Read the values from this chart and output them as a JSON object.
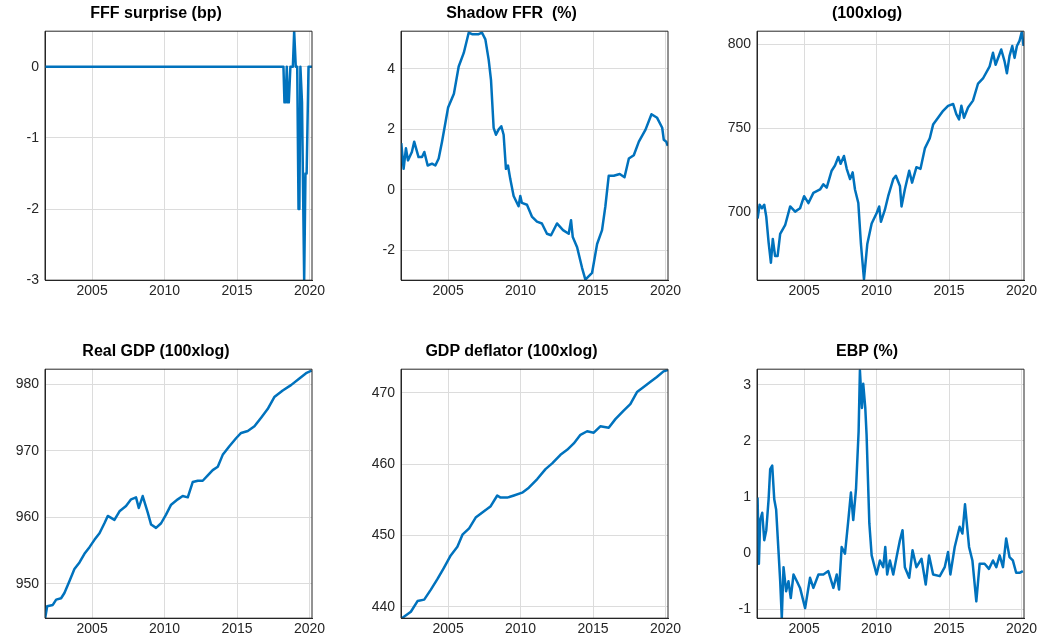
{
  "chart_data": [
    {
      "type": "line",
      "title": "FFF surprise (bp)",
      "xlim": [
        2001.75,
        2020.17
      ],
      "xticks": [
        2005,
        2010,
        2015,
        2020
      ],
      "ylim": [
        -3,
        0.5
      ],
      "yticks": [
        -3,
        -2,
        -1,
        0
      ],
      "grid": true,
      "marker": "none",
      "line_style": "solid",
      "series": [
        {
          "color": "#0072bd",
          "x": [
            2001.75,
            2018.2,
            2018.27,
            2018.35,
            2018.43,
            2018.5,
            2018.57,
            2018.68,
            2018.75,
            2018.85,
            2018.94,
            2019.05,
            2019.15,
            2019.24,
            2019.3,
            2019.37,
            2019.48,
            2019.63,
            2019.72,
            2019.8,
            2019.93,
            2020.17
          ],
          "values": [
            0,
            0,
            -0.5,
            -0.5,
            0,
            -0.5,
            -0.5,
            0,
            0,
            0,
            0.5,
            0,
            0,
            -2,
            -2,
            0,
            -0.5,
            -3,
            -1.5,
            -1.5,
            0,
            0
          ]
        }
      ]
    },
    {
      "type": "line",
      "title": "Shadow FFR  (%)",
      "xlim": [
        2001.75,
        2020.17
      ],
      "xticks": [
        2005,
        2010,
        2015,
        2020
      ],
      "ylim": [
        -3,
        5.25
      ],
      "yticks": [
        -2,
        0,
        2,
        4
      ],
      "grid": true,
      "marker": "none",
      "line_style": "solid",
      "series": [
        {
          "color": "#0072bd",
          "x": [
            2001.77,
            2001.93,
            2002.09,
            2002.23,
            2002.5,
            2002.66,
            2002.96,
            2003.2,
            2003.36,
            2003.59,
            2003.89,
            2004.12,
            2004.35,
            2004.58,
            2005.0,
            2005.4,
            2005.73,
            2006.08,
            2006.42,
            2006.65,
            2007.11,
            2007.34,
            2007.57,
            2007.8,
            2007.96,
            2008.14,
            2008.3,
            2008.48,
            2008.67,
            2008.83,
            2008.99,
            2009.13,
            2009.29,
            2009.52,
            2009.86,
            2009.98,
            2010.09,
            2010.44,
            2010.78,
            2011.13,
            2011.47,
            2011.82,
            2012.1,
            2012.51,
            2012.93,
            2013.32,
            2013.48,
            2013.6,
            2013.9,
            2014.24,
            2014.47,
            2014.93,
            2015.28,
            2015.62,
            2015.85,
            2016.08,
            2016.43,
            2016.84,
            2017.17,
            2017.47,
            2017.81,
            2018.16,
            2018.62,
            2019.03,
            2019.42,
            2019.77,
            2019.88,
            2020.05,
            2020.15
          ],
          "values": [
            1.54,
            0.69,
            1.37,
            0.97,
            1.25,
            1.59,
            1.08,
            1.08,
            1.25,
            0.8,
            0.86,
            0.8,
            1.03,
            1.59,
            2.72,
            3.18,
            4.08,
            4.53,
            5.2,
            5.15,
            5.15,
            5.2,
            4.98,
            4.3,
            3.63,
            2.05,
            1.82,
            1.99,
            2.1,
            1.82,
            0.69,
            0.8,
            0.35,
            -0.21,
            -0.55,
            -0.21,
            -0.44,
            -0.5,
            -0.89,
            -1.06,
            -1.12,
            -1.46,
            -1.51,
            -1.12,
            -1.34,
            -1.46,
            -1.01,
            -1.57,
            -1.91,
            -2.59,
            -2.98,
            -2.76,
            -1.8,
            -1.34,
            -0.55,
            0.46,
            0.46,
            0.52,
            0.41,
            1.03,
            1.14,
            1.59,
            1.99,
            2.5,
            2.38,
            2.05,
            1.65,
            1.59,
            1.45
          ]
        }
      ]
    },
    {
      "type": "line",
      "title": "(100xlog)",
      "xlim": [
        2001.75,
        2020.17
      ],
      "xticks": [
        2005,
        2010,
        2015,
        2020
      ],
      "ylim": [
        659.5,
        808
      ],
      "yticks": [
        700,
        750,
        800
      ],
      "grid": true,
      "marker": "none",
      "line_style": "solid",
      "series": [
        {
          "color": "#0072bd",
          "x": [
            2001.79,
            2001.93,
            2002.09,
            2002.25,
            2002.39,
            2002.55,
            2002.71,
            2002.84,
            2003.0,
            2003.17,
            2003.35,
            2003.69,
            2004.04,
            2004.38,
            2004.72,
            2005.0,
            2005.3,
            2005.64,
            2006.1,
            2006.33,
            2006.56,
            2006.9,
            2007.13,
            2007.36,
            2007.52,
            2007.75,
            2007.94,
            2008.17,
            2008.35,
            2008.51,
            2008.74,
            2008.92,
            2009.13,
            2009.36,
            2009.66,
            2010.0,
            2010.18,
            2010.3,
            2010.57,
            2010.8,
            2011.15,
            2011.33,
            2011.61,
            2011.72,
            2011.95,
            2012.25,
            2012.45,
            2012.75,
            2013.03,
            2013.33,
            2013.67,
            2013.9,
            2014.24,
            2014.59,
            2014.93,
            2015.28,
            2015.5,
            2015.69,
            2015.85,
            2016.03,
            2016.31,
            2016.65,
            2017.0,
            2017.34,
            2017.8,
            2018.03,
            2018.21,
            2018.6,
            2018.83,
            2018.99,
            2019.17,
            2019.36,
            2019.52,
            2019.68,
            2019.86,
            2020.02,
            2020.14
          ],
          "values": [
            696.3,
            704.5,
            702.4,
            704.5,
            697.3,
            682.1,
            669.9,
            684.1,
            673.9,
            673.9,
            687.2,
            692.3,
            703.5,
            700.4,
            702.4,
            709.6,
            705.5,
            711.6,
            713.6,
            716.7,
            714.7,
            724.8,
            727.9,
            733,
            728.9,
            733.6,
            725.9,
            719.8,
            723.8,
            713.6,
            705.5,
            681.1,
            660,
            681.1,
            693.3,
            699.4,
            703.5,
            694.3,
            701.4,
            709.6,
            719.8,
            721.8,
            715.7,
            703.5,
            713.6,
            724.8,
            717.7,
            726.9,
            725.9,
            738.1,
            744.2,
            752.3,
            756.4,
            760.5,
            763.5,
            764.6,
            758.5,
            755.4,
            763.5,
            756.4,
            762.5,
            766.6,
            776.8,
            779.8,
            787,
            795.1,
            788,
            797.1,
            790,
            782.9,
            793.1,
            799.2,
            792.1,
            799.2,
            802.2,
            807.7,
            799.2
          ]
        }
      ]
    },
    {
      "type": "line",
      "title": "Real GDP (100xlog)",
      "xlim": [
        2001.75,
        2020.17
      ],
      "xticks": [
        2005,
        2010,
        2015,
        2020
      ],
      "ylim": [
        944.8,
        982.3
      ],
      "yticks": [
        950,
        960,
        970,
        980
      ],
      "grid": true,
      "marker": "none",
      "line_style": "solid",
      "series": [
        {
          "color": "#0072bd",
          "x": [
            2001.76,
            2001.9,
            2002.29,
            2002.52,
            2002.86,
            2003.09,
            2003.44,
            2003.78,
            2004.13,
            2004.47,
            2004.82,
            2005.16,
            2005.51,
            2005.85,
            2006.08,
            2006.54,
            2006.89,
            2007.34,
            2007.69,
            2008.03,
            2008.22,
            2008.49,
            2008.84,
            2009.07,
            2009.41,
            2009.76,
            2010.1,
            2010.45,
            2010.91,
            2011.25,
            2011.6,
            2011.94,
            2012.29,
            2012.63,
            2012.98,
            2013.32,
            2013.67,
            2014.01,
            2014.47,
            2014.93,
            2015.28,
            2015.74,
            2016.2,
            2016.66,
            2017.11,
            2017.57,
            2018.15,
            2018.72,
            2019.3,
            2019.76,
            2020.15
          ],
          "values": [
            944.8,
            946.6,
            946.8,
            947.6,
            947.8,
            948.6,
            950.4,
            952.2,
            953.2,
            954.5,
            955.5,
            956.6,
            957.6,
            959.1,
            960.2,
            959.6,
            960.9,
            961.7,
            962.7,
            963,
            961.4,
            963.2,
            960.7,
            958.9,
            958.4,
            959.1,
            960.4,
            961.9,
            962.7,
            963.2,
            963,
            965.3,
            965.5,
            965.5,
            966.3,
            967.1,
            967.6,
            969.4,
            970.7,
            971.9,
            972.7,
            973,
            973.7,
            975,
            976.3,
            978.1,
            979.1,
            979.9,
            980.9,
            981.7,
            982.1
          ]
        }
      ]
    },
    {
      "type": "line",
      "title": "GDP deflator (100xlog)",
      "xlim": [
        2001.75,
        2020.17
      ],
      "xticks": [
        2005,
        2010,
        2015,
        2020
      ],
      "ylim": [
        438.4,
        473.3
      ],
      "yticks": [
        440,
        450,
        460,
        470
      ],
      "grid": true,
      "marker": "none",
      "line_style": "solid",
      "series": [
        {
          "color": "#0072bd",
          "x": [
            2001.81,
            2002.43,
            2002.89,
            2003.35,
            2003.81,
            2004.27,
            2004.72,
            2005.18,
            2005.64,
            2005.99,
            2006.45,
            2006.9,
            2007.36,
            2007.94,
            2008.39,
            2008.62,
            2009.08,
            2009.54,
            2010.11,
            2010.57,
            2011.15,
            2011.72,
            2012.18,
            2012.75,
            2013.21,
            2013.67,
            2014.13,
            2014.59,
            2015.05,
            2015.5,
            2016.08,
            2016.54,
            2017.11,
            2017.57,
            2018.03,
            2018.49,
            2018.94,
            2019.4,
            2019.86,
            2020.16
          ],
          "values": [
            438.4,
            439.3,
            440.8,
            441,
            442.4,
            443.9,
            445.5,
            447.2,
            448.4,
            450.1,
            451,
            452.5,
            453.2,
            454.1,
            455.6,
            455.3,
            455.3,
            455.6,
            456,
            456.7,
            457.9,
            459.3,
            460.1,
            461.3,
            462,
            462.9,
            464.1,
            464.6,
            464.4,
            465.3,
            465.1,
            466.3,
            467.5,
            468.4,
            470.1,
            470.8,
            471.5,
            472.2,
            473,
            473.2
          ]
        }
      ]
    },
    {
      "type": "line",
      "title": "EBP (%)",
      "xlim": [
        2001.75,
        2020.17
      ],
      "xticks": [
        2005,
        2010,
        2015,
        2020
      ],
      "ylim": [
        -1.16,
        3.28
      ],
      "yticks": [
        -1,
        0,
        1,
        2,
        3
      ],
      "grid": true,
      "marker": "none",
      "line_style": "solid",
      "series": [
        {
          "color": "#0072bd",
          "x": [
            2001.79,
            2001.88,
            2001.97,
            2002.11,
            2002.25,
            2002.39,
            2002.55,
            2002.66,
            2002.8,
            2002.94,
            2003.07,
            2003.23,
            2003.35,
            2003.46,
            2003.58,
            2003.76,
            2003.92,
            2004.08,
            2004.27,
            2004.5,
            2004.72,
            2005.07,
            2005.41,
            2005.64,
            2005.99,
            2006.33,
            2006.67,
            2007.02,
            2007.25,
            2007.41,
            2007.59,
            2007.82,
            2008.05,
            2008.23,
            2008.39,
            2008.58,
            2008.76,
            2008.85,
            2008.99,
            2009.08,
            2009.22,
            2009.31,
            2009.5,
            2009.66,
            2010.0,
            2010.23,
            2010.46,
            2010.6,
            2010.73,
            2010.92,
            2011.15,
            2011.38,
            2011.61,
            2011.79,
            2011.95,
            2012.25,
            2012.48,
            2012.75,
            2013.1,
            2013.39,
            2013.62,
            2013.9,
            2014.36,
            2014.7,
            2014.93,
            2015.09,
            2015.39,
            2015.73,
            2015.92,
            2016.1,
            2016.38,
            2016.61,
            2016.88,
            2017.11,
            2017.45,
            2017.75,
            2018.03,
            2018.26,
            2018.49,
            2018.72,
            2018.94,
            2019.17,
            2019.4,
            2019.63,
            2019.86,
            2020.09
          ],
          "values": [
            0.99,
            -0.19,
            0.59,
            0.72,
            0.23,
            0.41,
            0.96,
            1.5,
            1.56,
            0.96,
            0.78,
            0.05,
            -0.5,
            -1.16,
            -0.25,
            -0.68,
            -0.5,
            -0.8,
            -0.38,
            -0.5,
            -0.62,
            -0.98,
            -0.44,
            -0.62,
            -0.38,
            -0.38,
            -0.32,
            -0.62,
            -0.38,
            -0.65,
            0.11,
            -0.01,
            0.59,
            1.08,
            0.59,
            1.14,
            2.17,
            3.26,
            2.59,
            3.02,
            2.59,
            2.11,
            0.53,
            -0.04,
            -0.38,
            -0.13,
            -0.25,
            0.11,
            -0.38,
            -0.13,
            -0.38,
            -0.07,
            0.23,
            0.41,
            -0.25,
            -0.44,
            0.05,
            -0.25,
            -0.1,
            -0.56,
            -0.04,
            -0.38,
            -0.41,
            -0.25,
            0.02,
            -0.38,
            0.11,
            0.47,
            0.35,
            0.87,
            0.11,
            -0.13,
            -0.86,
            -0.19,
            -0.19,
            -0.28,
            -0.13,
            -0.25,
            -0.04,
            -0.25,
            0.26,
            -0.07,
            -0.13,
            -0.35,
            -0.35,
            -0.32
          ]
        }
      ]
    }
  ]
}
